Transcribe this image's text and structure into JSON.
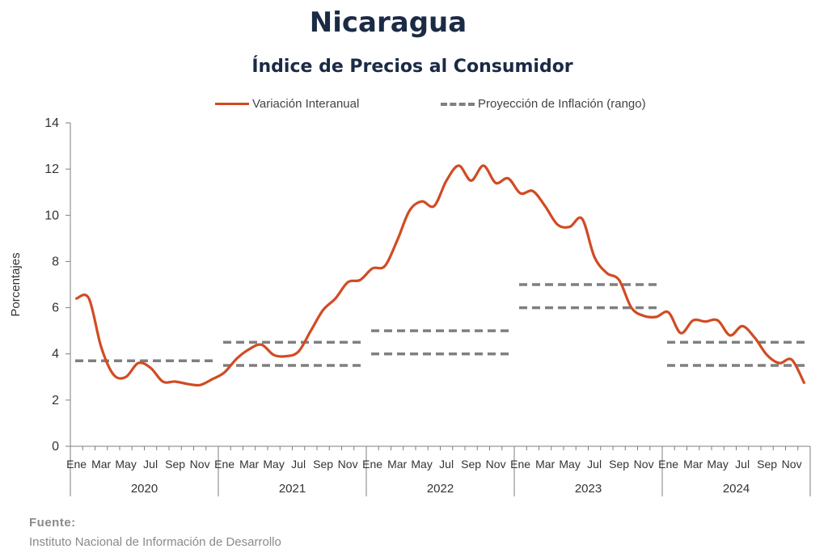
{
  "title": "Nicaragua",
  "subtitle": "Índice de Precios al Consumidor",
  "legend": {
    "series_label": "Variación Interanual",
    "projection_label": "Proyección de Inflación (rango)"
  },
  "source": {
    "label": "Fuente:",
    "text": "Instituto Nacional de Información de  Desarrollo"
  },
  "colors": {
    "series": "#d14b23",
    "projection": "#7f7f7f",
    "axis": "#7f7f7f"
  },
  "chart_data": {
    "type": "line",
    "ylabel": "Porcentajes",
    "ylim": [
      0,
      14
    ],
    "yticks": [
      "0",
      "2",
      "4",
      "6",
      "8",
      "10",
      "12",
      "14"
    ],
    "month_labels": [
      "Ene",
      "Mar",
      "May",
      "Jul",
      "Sep",
      "Nov"
    ],
    "years": [
      "2020",
      "2021",
      "2022",
      "2023",
      "2024"
    ],
    "series": [
      {
        "name": "Variación Interanual",
        "x": [
          "2020-01",
          "2020-02",
          "2020-03",
          "2020-04",
          "2020-05",
          "2020-06",
          "2020-07",
          "2020-08",
          "2020-09",
          "2020-10",
          "2020-11",
          "2020-12",
          "2021-01",
          "2021-02",
          "2021-03",
          "2021-04",
          "2021-05",
          "2021-06",
          "2021-07",
          "2021-08",
          "2021-09",
          "2021-10",
          "2021-11",
          "2021-12",
          "2022-01",
          "2022-02",
          "2022-03",
          "2022-04",
          "2022-05",
          "2022-06",
          "2022-07",
          "2022-08",
          "2022-09",
          "2022-10",
          "2022-11",
          "2022-12",
          "2023-01",
          "2023-02",
          "2023-03",
          "2023-04",
          "2023-05",
          "2023-06",
          "2023-07",
          "2023-08",
          "2023-09",
          "2023-10",
          "2023-11",
          "2023-12",
          "2024-01",
          "2024-02",
          "2024-03",
          "2024-04",
          "2024-05",
          "2024-06",
          "2024-07",
          "2024-08",
          "2024-09",
          "2024-10",
          "2024-11",
          "2024-12"
        ],
        "values": [
          6.4,
          6.4,
          4.3,
          3.1,
          3.0,
          3.6,
          3.4,
          2.8,
          2.8,
          2.7,
          2.65,
          2.9,
          3.2,
          3.8,
          4.2,
          4.4,
          3.95,
          3.9,
          4.1,
          5.0,
          5.9,
          6.4,
          7.1,
          7.2,
          7.7,
          7.8,
          8.9,
          10.2,
          10.6,
          10.4,
          11.5,
          12.15,
          11.5,
          12.15,
          11.4,
          11.6,
          10.95,
          11.05,
          10.4,
          9.6,
          9.5,
          9.85,
          8.2,
          7.5,
          7.2,
          6.0,
          5.65,
          5.6,
          5.8,
          4.9,
          5.45,
          5.4,
          5.45,
          4.8,
          5.2,
          4.7,
          3.95,
          3.6,
          3.75,
          2.75
        ]
      }
    ],
    "projection_ranges": [
      {
        "year": "2020",
        "low": 3.7,
        "high": 3.7
      },
      {
        "year": "2021",
        "low": 3.5,
        "high": 4.5
      },
      {
        "year": "2022",
        "low": 4.0,
        "high": 5.0
      },
      {
        "year": "2023",
        "low": 6.0,
        "high": 7.0
      },
      {
        "year": "2024",
        "low": 3.5,
        "high": 4.5
      }
    ]
  }
}
